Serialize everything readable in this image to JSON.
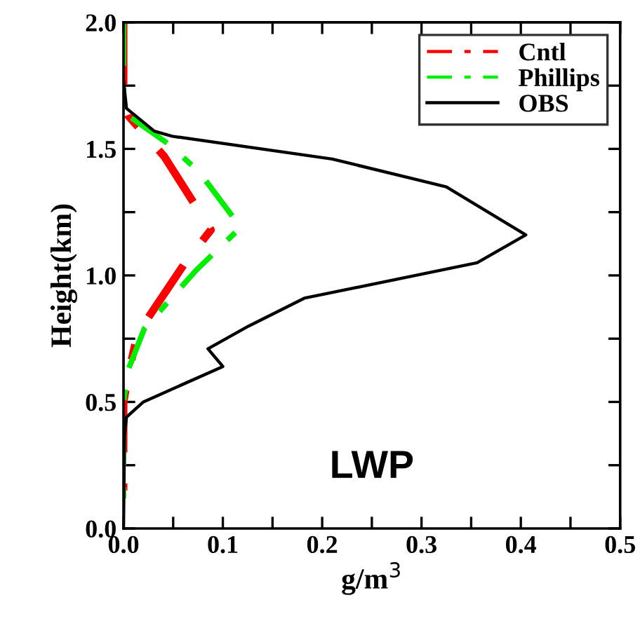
{
  "chart_data": {
    "type": "line",
    "xlabel": "g/m$^{3}$",
    "ylabel": "Height(km)",
    "annotations": [
      "LWP"
    ],
    "xlim": [
      0,
      0.5
    ],
    "ylim": [
      0,
      2.0
    ],
    "xticks": [
      {
        "value": 0,
        "label": "0.0"
      },
      {
        "value": 0.05,
        "label": null
      },
      {
        "value": 0.1,
        "label": "0.1"
      },
      {
        "value": 0.15,
        "label": null
      },
      {
        "value": 0.2,
        "label": "0.2"
      },
      {
        "value": 0.25,
        "label": null
      },
      {
        "value": 0.3,
        "label": "0.3"
      },
      {
        "value": 0.35,
        "label": null
      },
      {
        "value": 0.4,
        "label": "0.4"
      },
      {
        "value": 0.45,
        "label": null
      },
      {
        "value": 0.5,
        "label": "0.5"
      }
    ],
    "yticks": [
      {
        "value": 0,
        "label": "0.0"
      },
      {
        "value": 0.25,
        "label": null
      },
      {
        "value": 0.5,
        "label": "0.5"
      },
      {
        "value": 0.75,
        "label": null
      },
      {
        "value": 1.0,
        "label": "1.0"
      },
      {
        "value": 1.25,
        "label": null
      },
      {
        "value": 1.5,
        "label": "1.5"
      },
      {
        "value": 1.75,
        "label": null
      },
      {
        "value": 2.0,
        "label": "2.0"
      }
    ],
    "grid": false,
    "legend": "top right",
    "marker": "none",
    "series": [
      {
        "name": "Cntl",
        "color": "#ff0000",
        "line_style": "dashdot",
        "x": [
          0,
          0,
          0.005,
          0.041,
          0.088,
          0.062,
          0.014,
          0.005,
          0,
          0
        ],
        "values": [
          2.0,
          1.68,
          1.63,
          1.47,
          1.18,
          1.05,
          0.77,
          0.61,
          0.5,
          0.15
        ]
      },
      {
        "name": "Phillips",
        "color": "#00ee00",
        "line_style": "dashdot",
        "x": [
          0,
          0,
          0.005,
          0.045,
          0.076,
          0.118,
          0.073,
          0.021,
          0.005,
          0,
          0
        ],
        "values": [
          2.0,
          1.68,
          1.63,
          1.52,
          1.41,
          1.19,
          1.02,
          0.79,
          0.63,
          0.5,
          0.11
        ]
      },
      {
        "name": "OBS",
        "color": "#000000",
        "line_style": "solid",
        "x": [
          0,
          0.003,
          0.031,
          0.049,
          0.21,
          0.325,
          0.405,
          0.356,
          0.182,
          0.126,
          0.085,
          0.1,
          0.02,
          0.003,
          0.001,
          0
        ],
        "values": [
          1.77,
          1.66,
          1.57,
          1.55,
          1.46,
          1.35,
          1.16,
          1.05,
          0.91,
          0.8,
          0.71,
          0.64,
          0.5,
          0.44,
          0.37,
          0.0
        ]
      }
    ]
  }
}
